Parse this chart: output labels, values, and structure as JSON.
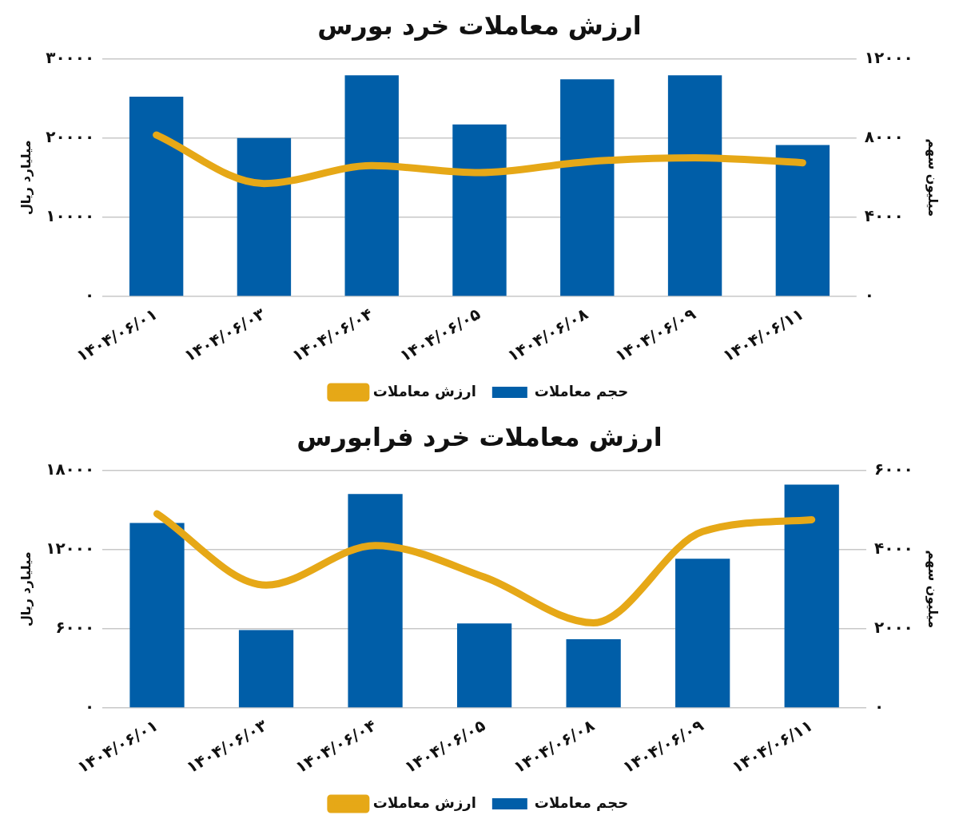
{
  "chart_data": [
    {
      "type": "bar",
      "title": "ارزش معاملات خرد بورس",
      "ylabel": "میلیارد ریال",
      "y2label": "میلیون سهم",
      "categories": [
        "۱۴۰۴/۰۶/۰۱",
        "۱۴۰۴/۰۶/۰۳",
        "۱۴۰۴/۰۶/۰۴",
        "۱۴۰۴/۰۶/۰۵",
        "۱۴۰۴/۰۶/۰۸",
        "۱۴۰۴/۰۶/۰۹",
        "۱۴۰۴/۰۶/۱۱"
      ],
      "series": [
        {
          "name": "حجم معاملات",
          "color": "#005ea8",
          "values": [
            25200,
            20000,
            27900,
            21700,
            27400,
            27900,
            19100
          ]
        },
        {
          "name": "ارزش معاملات",
          "type": "line",
          "axis": "y2",
          "color": "#e6a817",
          "values": [
            8150,
            5700,
            6600,
            6250,
            6800,
            7000,
            6750
          ]
        }
      ],
      "ylim": [
        0,
        30000
      ],
      "yticks": [
        {
          "value": 0,
          "label": "۰"
        },
        {
          "value": 10000,
          "label": "۱۰۰۰۰"
        },
        {
          "value": 20000,
          "label": "۲۰۰۰۰"
        },
        {
          "value": 30000,
          "label": "۳۰۰۰۰"
        }
      ],
      "y2lim": [
        0,
        12000
      ],
      "y2ticks": [
        {
          "value": 0,
          "label": "۰"
        },
        {
          "value": 4000,
          "label": "۴۰۰۰"
        },
        {
          "value": 8000,
          "label": "۸۰۰۰"
        },
        {
          "value": 12000,
          "label": "۱۲۰۰۰"
        }
      ],
      "grid": "y",
      "legend": "bottom",
      "marker": "none"
    },
    {
      "type": "bar",
      "title": "ارزش معاملات خرد فرابورس",
      "ylabel": "میلیارد ریال",
      "y2label": "میلیون سهم",
      "categories": [
        "۱۴۰۴/۰۶/۰۱",
        "۱۴۰۴/۰۶/۰۳",
        "۱۴۰۴/۰۶/۰۴",
        "۱۴۰۴/۰۶/۰۵",
        "۱۴۰۴/۰۶/۰۸",
        "۱۴۰۴/۰۶/۰۹",
        "۱۴۰۴/۰۶/۱۱"
      ],
      "series": [
        {
          "name": "حجم معاملات",
          "color": "#005ea8",
          "values": [
            14000,
            5900,
            16200,
            6400,
            5200,
            11300,
            16900
          ]
        },
        {
          "name": "ارزش معاملات",
          "type": "line",
          "axis": "y2",
          "color": "#e6a817",
          "values": [
            4900,
            3100,
            4100,
            3300,
            2150,
            4450,
            4750
          ]
        }
      ],
      "ylim": [
        0,
        18000
      ],
      "yticks": [
        {
          "value": 0,
          "label": "۰"
        },
        {
          "value": 6000,
          "label": "۶۰۰۰"
        },
        {
          "value": 12000,
          "label": "۱۲۰۰۰"
        },
        {
          "value": 18000,
          "label": "۱۸۰۰۰"
        }
      ],
      "y2lim": [
        0,
        6000
      ],
      "y2ticks": [
        {
          "value": 0,
          "label": "۰"
        },
        {
          "value": 2000,
          "label": "۲۰۰۰"
        },
        {
          "value": 4000,
          "label": "۴۰۰۰"
        },
        {
          "value": 6000,
          "label": "۶۰۰۰"
        }
      ],
      "grid": "y",
      "legend": "bottom",
      "marker": "none"
    }
  ]
}
